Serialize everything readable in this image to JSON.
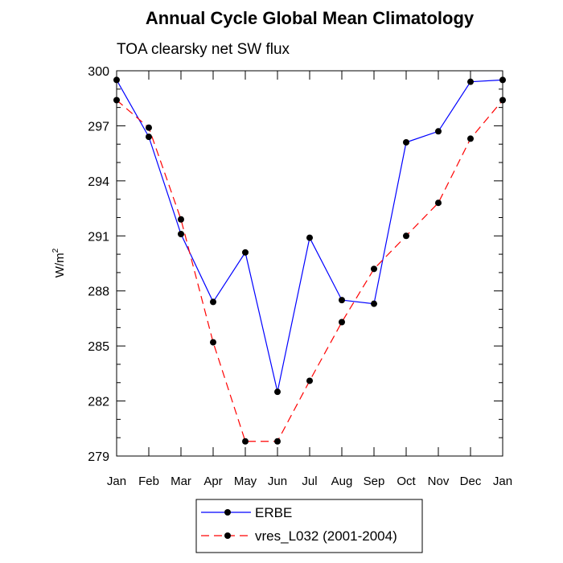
{
  "chart_data": {
    "type": "line",
    "title": "Annual Cycle Global Mean Climatology",
    "subtitle": "TOA clearsky net SW flux",
    "ylabel": "W/m",
    "ylabel_sup": "2",
    "xlabel": "",
    "categories": [
      "Jan",
      "Feb",
      "Mar",
      "Apr",
      "May",
      "Jun",
      "Jul",
      "Aug",
      "Sep",
      "Oct",
      "Nov",
      "Dec",
      "Jan"
    ],
    "ylim": [
      279,
      300
    ],
    "yticks": [
      279,
      282,
      285,
      288,
      291,
      294,
      297,
      300
    ],
    "series": [
      {
        "name": "ERBE",
        "color": "#0000ff",
        "dash": "solid",
        "values": [
          299.5,
          296.4,
          291.1,
          287.4,
          290.1,
          282.5,
          290.9,
          287.5,
          287.3,
          296.1,
          296.7,
          299.4,
          299.5
        ]
      },
      {
        "name": "vres_L032 (2001-2004)",
        "color": "#ff0000",
        "dash": "dashed",
        "values": [
          298.4,
          296.9,
          291.9,
          285.2,
          279.8,
          279.8,
          283.1,
          286.3,
          289.2,
          291.0,
          292.8,
          296.3,
          298.4
        ]
      }
    ],
    "grid": false,
    "legend_position": "bottom"
  }
}
